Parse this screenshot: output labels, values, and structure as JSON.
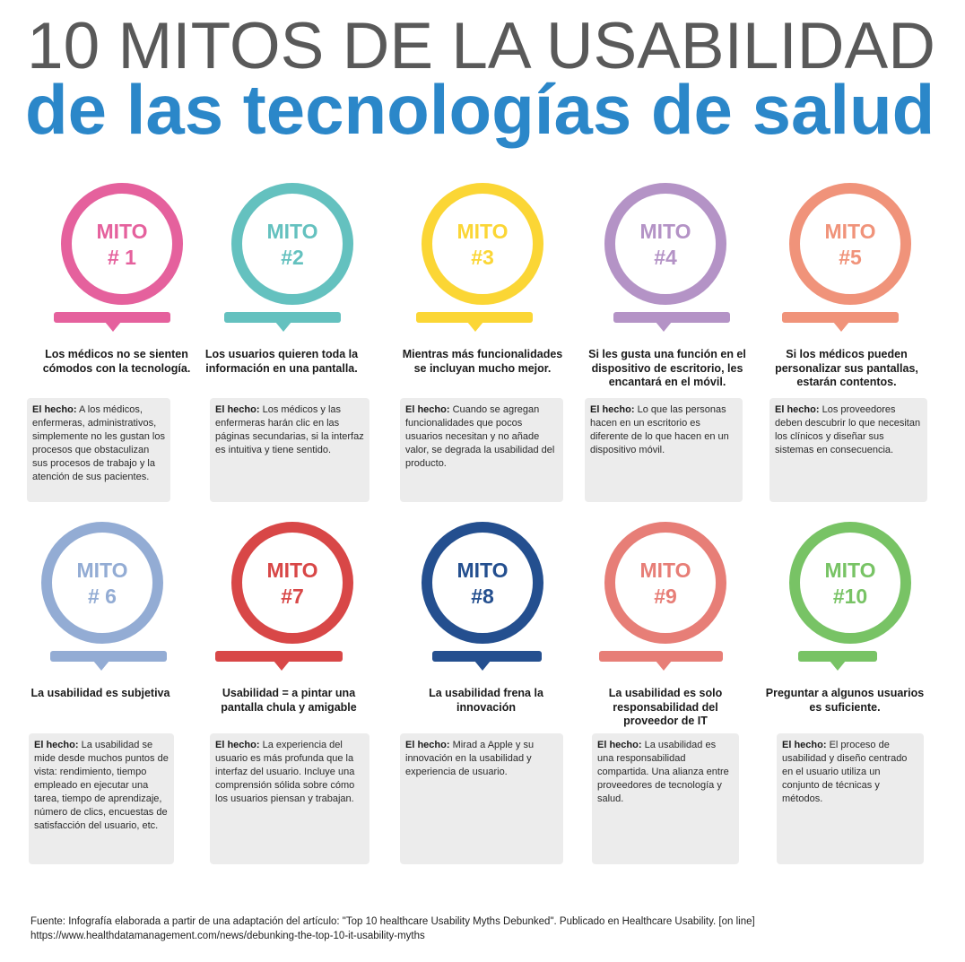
{
  "header": {
    "title_line1": "10 MITOS DE LA USABILIDAD",
    "title_line2": "de las tecnologías de salud"
  },
  "colors": {
    "title_gray": "#595959",
    "title_blue": "#2b87c9",
    "m1": "#e5619d",
    "m2": "#64c1bf",
    "m3": "#fbd635",
    "m4": "#b493c6",
    "m5": "#f0937a",
    "m6": "#93acd4",
    "m7": "#d84747",
    "m8": "#244f8f",
    "m9": "#e77e77",
    "m10": "#78c365"
  },
  "fact_label": "El hecho:",
  "myths": [
    {
      "label": "MITO",
      "number": "# 1",
      "title": "Los médicos no se sienten cómodos con la tecnología.",
      "fact": "A los médicos, enfermeras, administrativos, simplemente no les gustan los  procesos que obstaculizan sus procesos de trabajo y la atención de sus pacientes."
    },
    {
      "label": "MITO",
      "number": "#2",
      "title": "Los usuarios quieren toda la información en una pantalla.",
      "fact": "Los médicos y las enfermeras harán clic en las páginas secundarias, si la interfaz es intuitiva y tiene sentido."
    },
    {
      "label": "MITO",
      "number": "#3",
      "title": "Mientras más funcionalidades se incluyan mucho mejor.",
      "fact": "Cuando se agregan funcionalidades que pocos usuarios necesitan y no añade valor, se degrada la usabilidad del producto."
    },
    {
      "label": "MITO",
      "number": "#4",
      "title": "Si les gusta una función en el dispositivo de escritorio, les encantará en el móvil.",
      "fact": "Lo que las personas hacen en un escritorio es diferente de lo que hacen en un dispositivo móvil."
    },
    {
      "label": "MITO",
      "number": "#5",
      "title": "Si los médicos pueden personalizar sus pantallas, estarán contentos.",
      "fact": "Los proveedores deben descubrir lo que necesitan los clínicos y diseñar sus sistemas en consecuencia."
    },
    {
      "label": "MITO",
      "number": "# 6",
      "title": "La usabilidad es subjetiva",
      "fact": "La usabilidad se mide desde muchos puntos de vista: rendimiento, tiempo empleado en ejecutar una tarea, tiempo de aprendizaje, número de clics, encuestas de satisfacción del usuario, etc."
    },
    {
      "label": "MITO",
      "number": "#7",
      "title": "Usabilidad = a pintar una pantalla chula y amigable",
      "fact": "La experiencia del usuario es más profunda que la interfaz del usuario. Incluye una comprensión sólida sobre cómo los usuarios piensan y trabajan."
    },
    {
      "label": "MITO",
      "number": "#8",
      "title": "La usabilidad frena la innovación",
      "fact": "Mirad a Apple y su innovación en la usabilidad y experiencia de usuario."
    },
    {
      "label": "MITO",
      "number": "#9",
      "title": "La usabilidad es solo responsabilidad del proveedor de IT",
      "fact": "La usabilidad es una responsabilidad compartida. Una alianza entre proveedores de tecnología y salud."
    },
    {
      "label": "MITO",
      "number": "#10",
      "title": "Preguntar a algunos usuarios es suficiente.",
      "fact": "El proceso de usabilidad y diseño centrado en el usuario utiliza un conjunto de técnicas y métodos."
    }
  ],
  "footer": {
    "line1": "Fuente: Infografía elaborada a partir de una adaptación del artículo: \"Top 10 healthcare Usability Myths Debunked\". Publicado en Healthcare Usability. [on line]",
    "line2": "https://www.healthdatamanagement.com/news/debunking-the-top-10-it-usability-myths"
  }
}
